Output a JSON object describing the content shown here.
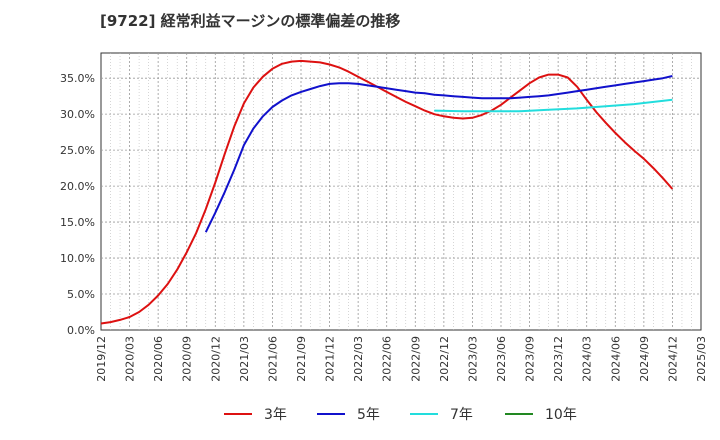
{
  "chart_data": {
    "type": "line",
    "title": "[9722]  経常利益マージンの標準偏差の推移",
    "xlabel": "",
    "ylabel": "",
    "ylim": [
      0,
      0.385
    ],
    "yticks": [
      "0.0%",
      "5.0%",
      "10.0%",
      "15.0%",
      "20.0%",
      "25.0%",
      "30.0%",
      "35.0%"
    ],
    "xticks": [
      "2019/12",
      "2020/03",
      "2020/06",
      "2020/09",
      "2020/12",
      "2021/03",
      "2021/06",
      "2021/09",
      "2021/12",
      "2022/03",
      "2022/06",
      "2022/09",
      "2022/12",
      "2023/03",
      "2023/06",
      "2023/09",
      "2023/12",
      "2024/03",
      "2024/06",
      "2024/09",
      "2024/12",
      "2025/03"
    ],
    "grid": true,
    "legend_position": "bottom",
    "series": [
      {
        "name": "3年",
        "color": "#dd1111",
        "points": [
          [
            "2019/12",
            0.009
          ],
          [
            "2020/01",
            0.011
          ],
          [
            "2020/02",
            0.014
          ],
          [
            "2020/03",
            0.018
          ],
          [
            "2020/04",
            0.025
          ],
          [
            "2020/05",
            0.035
          ],
          [
            "2020/06",
            0.048
          ],
          [
            "2020/07",
            0.064
          ],
          [
            "2020/08",
            0.084
          ],
          [
            "2020/09",
            0.108
          ],
          [
            "2020/10",
            0.135
          ],
          [
            "2020/11",
            0.168
          ],
          [
            "2020/12",
            0.205
          ],
          [
            "2021/01",
            0.245
          ],
          [
            "2021/02",
            0.283
          ],
          [
            "2021/03",
            0.315
          ],
          [
            "2021/04",
            0.337
          ],
          [
            "2021/05",
            0.352
          ],
          [
            "2021/06",
            0.363
          ],
          [
            "2021/07",
            0.37
          ],
          [
            "2021/08",
            0.373
          ],
          [
            "2021/09",
            0.374
          ],
          [
            "2021/10",
            0.373
          ],
          [
            "2021/11",
            0.372
          ],
          [
            "2021/12",
            0.369
          ],
          [
            "2022/01",
            0.365
          ],
          [
            "2022/02",
            0.359
          ],
          [
            "2022/03",
            0.352
          ],
          [
            "2022/04",
            0.345
          ],
          [
            "2022/05",
            0.338
          ],
          [
            "2022/06",
            0.331
          ],
          [
            "2022/07",
            0.324
          ],
          [
            "2022/08",
            0.317
          ],
          [
            "2022/09",
            0.311
          ],
          [
            "2022/10",
            0.305
          ],
          [
            "2022/11",
            0.3
          ],
          [
            "2022/12",
            0.297
          ],
          [
            "2023/01",
            0.295
          ],
          [
            "2023/02",
            0.294
          ],
          [
            "2023/03",
            0.295
          ],
          [
            "2023/04",
            0.299
          ],
          [
            "2023/05",
            0.305
          ],
          [
            "2023/06",
            0.313
          ],
          [
            "2023/07",
            0.323
          ],
          [
            "2023/08",
            0.333
          ],
          [
            "2023/09",
            0.343
          ],
          [
            "2023/10",
            0.351
          ],
          [
            "2023/11",
            0.355
          ],
          [
            "2023/12",
            0.355
          ],
          [
            "2024/01",
            0.351
          ],
          [
            "2024/02",
            0.338
          ],
          [
            "2024/03",
            0.32
          ],
          [
            "2024/04",
            0.303
          ],
          [
            "2024/05",
            0.288
          ],
          [
            "2024/06",
            0.274
          ],
          [
            "2024/07",
            0.261
          ],
          [
            "2024/08",
            0.249
          ],
          [
            "2024/09",
            0.238
          ],
          [
            "2024/10",
            0.225
          ],
          [
            "2024/11",
            0.211
          ],
          [
            "2024/12",
            0.196
          ]
        ]
      },
      {
        "name": "5年",
        "color": "#1111cc",
        "points": [
          [
            "2020/11",
            0.136
          ],
          [
            "2020/12",
            0.163
          ],
          [
            "2021/01",
            0.192
          ],
          [
            "2021/02",
            0.223
          ],
          [
            "2021/03",
            0.257
          ],
          [
            "2021/04",
            0.28
          ],
          [
            "2021/05",
            0.297
          ],
          [
            "2021/06",
            0.31
          ],
          [
            "2021/07",
            0.319
          ],
          [
            "2021/08",
            0.326
          ],
          [
            "2021/09",
            0.331
          ],
          [
            "2021/10",
            0.335
          ],
          [
            "2021/11",
            0.339
          ],
          [
            "2021/12",
            0.342
          ],
          [
            "2022/01",
            0.343
          ],
          [
            "2022/02",
            0.343
          ],
          [
            "2022/03",
            0.342
          ],
          [
            "2022/04",
            0.34
          ],
          [
            "2022/05",
            0.338
          ],
          [
            "2022/06",
            0.336
          ],
          [
            "2022/07",
            0.334
          ],
          [
            "2022/08",
            0.332
          ],
          [
            "2022/09",
            0.33
          ],
          [
            "2022/10",
            0.329
          ],
          [
            "2022/11",
            0.327
          ],
          [
            "2022/12",
            0.326
          ],
          [
            "2023/01",
            0.325
          ],
          [
            "2023/02",
            0.324
          ],
          [
            "2023/03",
            0.323
          ],
          [
            "2023/04",
            0.322
          ],
          [
            "2023/05",
            0.322
          ],
          [
            "2023/06",
            0.322
          ],
          [
            "2023/07",
            0.322
          ],
          [
            "2023/08",
            0.323
          ],
          [
            "2023/09",
            0.324
          ],
          [
            "2023/10",
            0.325
          ],
          [
            "2023/11",
            0.326
          ],
          [
            "2023/12",
            0.328
          ],
          [
            "2024/01",
            0.33
          ],
          [
            "2024/02",
            0.332
          ],
          [
            "2024/03",
            0.334
          ],
          [
            "2024/04",
            0.336
          ],
          [
            "2024/05",
            0.338
          ],
          [
            "2024/06",
            0.34
          ],
          [
            "2024/07",
            0.342
          ],
          [
            "2024/08",
            0.344
          ],
          [
            "2024/09",
            0.346
          ],
          [
            "2024/10",
            0.348
          ],
          [
            "2024/11",
            0.35
          ],
          [
            "2024/12",
            0.353
          ]
        ]
      },
      {
        "name": "7年",
        "color": "#22dddd",
        "points": [
          [
            "2022/11",
            0.305
          ],
          [
            "2023/02",
            0.304
          ],
          [
            "2023/05",
            0.304
          ],
          [
            "2023/08",
            0.304
          ],
          [
            "2023/11",
            0.306
          ],
          [
            "2024/02",
            0.308
          ],
          [
            "2024/05",
            0.311
          ],
          [
            "2024/08",
            0.314
          ],
          [
            "2024/12",
            0.32
          ]
        ]
      },
      {
        "name": "10年",
        "color": "#228822",
        "points": []
      }
    ]
  }
}
